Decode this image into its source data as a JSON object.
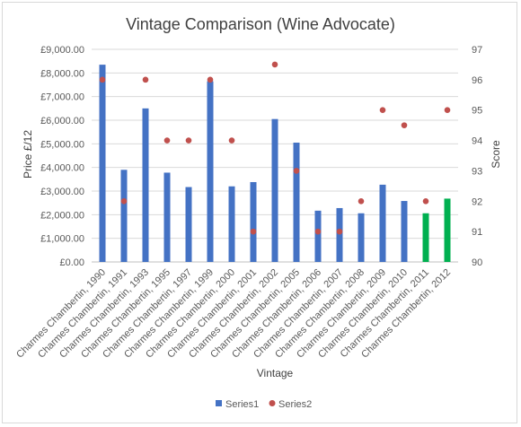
{
  "chart_data": {
    "type": "bar",
    "title": "Vintage Comparison (Wine Advocate)",
    "xlabel": "Vintage",
    "ylabel": "Price £/12",
    "y2label": "Score",
    "ylim": [
      0,
      9000
    ],
    "y2lim": [
      90,
      97
    ],
    "grid": true,
    "legend_position": "bottom",
    "yticks": [
      "£0.00",
      "£1,000.00",
      "£2,000.00",
      "£3,000.00",
      "£4,000.00",
      "£5,000.00",
      "£6,000.00",
      "£7,000.00",
      "£8,000.00",
      "£9,000.00"
    ],
    "y2ticks": [
      "90",
      "91",
      "92",
      "93",
      "94",
      "95",
      "96",
      "97"
    ],
    "categories": [
      "Charmes Chambertin, 1990",
      "Charmes Chambertin, 1991",
      "Charmes Chambertin, 1993",
      "Charmes Chambertin, 1995",
      "Charmes Chambertin, 1997",
      "Charmes Chambertin, 1999",
      "Charmes Chambertin, 2000",
      "Charmes Chambertin, 2001",
      "Charmes Chambertin, 2002",
      "Charmes Chambertin, 2005",
      "Charmes Chambertin, 2006",
      "Charmes Chambertin, 2007",
      "Charmes Chambertin, 2008",
      "Charmes Chambertin, 2009",
      "Charmes Chambertin, 2010",
      "Charmes Chambertin, 2011",
      "Charmes Chambertin, 2012"
    ],
    "series": [
      {
        "name": "Series1",
        "type": "bar",
        "axis": "primary",
        "color": "#4472c4",
        "highlight_color": "#00b050",
        "highlight_indices": [
          15,
          16
        ],
        "values": [
          8350,
          3900,
          6500,
          3780,
          3170,
          7650,
          3200,
          3380,
          6050,
          5050,
          2170,
          2280,
          2060,
          3270,
          2580,
          2060,
          2680
        ]
      },
      {
        "name": "Series2",
        "type": "scatter",
        "axis": "secondary",
        "color": "#c0504d",
        "values": [
          96,
          92,
          96,
          94,
          94,
          96,
          94,
          91,
          96.5,
          93,
          91,
          91,
          92,
          95,
          94.5,
          92,
          95
        ]
      }
    ]
  }
}
